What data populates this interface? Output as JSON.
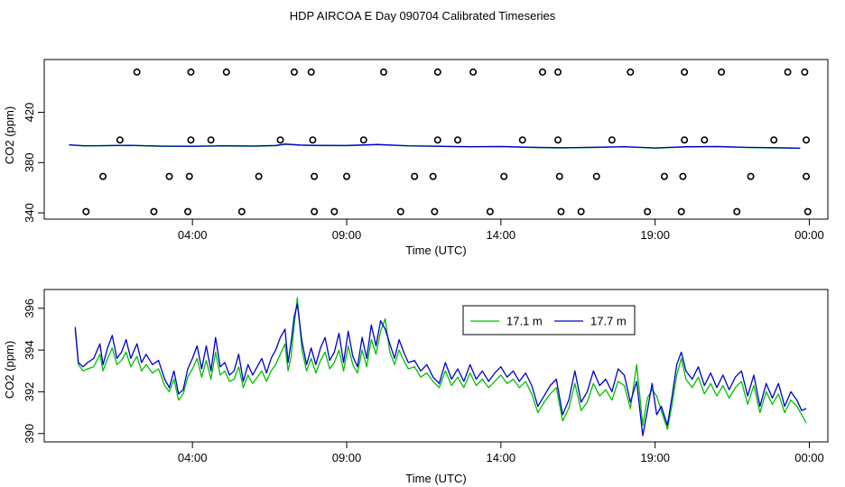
{
  "figure": {
    "title": "HDP AIRCOA E  Day 090704  Calibrated Timeseries"
  },
  "chart_data": [
    {
      "type": "scatter",
      "xlabel": "Time (UTC)",
      "ylabel": "CO2 (ppm)",
      "xlim": [
        0.0,
        24.0
      ],
      "ylim": [
        335,
        462
      ],
      "xticks": [
        {
          "value": 4,
          "label": "04:00"
        },
        {
          "value": 9,
          "label": "09:00"
        },
        {
          "value": 14,
          "label": "14:00"
        },
        {
          "value": 19,
          "label": "19:00"
        },
        {
          "value": 24,
          "label": "00:00"
        }
      ],
      "yticks": [
        {
          "value": 340,
          "label": "340"
        },
        {
          "value": 380,
          "label": "380"
        },
        {
          "value": 420,
          "label": "420"
        }
      ],
      "calibration_points": [
        {
          "x": 2.2,
          "y": 452
        },
        {
          "x": 3.95,
          "y": 452
        },
        {
          "x": 5.1,
          "y": 452
        },
        {
          "x": 7.3,
          "y": 452
        },
        {
          "x": 7.85,
          "y": 452
        },
        {
          "x": 10.2,
          "y": 452
        },
        {
          "x": 11.95,
          "y": 452
        },
        {
          "x": 13.1,
          "y": 452
        },
        {
          "x": 15.35,
          "y": 452
        },
        {
          "x": 15.85,
          "y": 452
        },
        {
          "x": 18.2,
          "y": 452
        },
        {
          "x": 19.95,
          "y": 452
        },
        {
          "x": 21.15,
          "y": 452
        },
        {
          "x": 23.3,
          "y": 452
        },
        {
          "x": 23.85,
          "y": 452
        },
        {
          "x": 1.65,
          "y": 398
        },
        {
          "x": 3.95,
          "y": 398
        },
        {
          "x": 4.6,
          "y": 398
        },
        {
          "x": 6.85,
          "y": 398
        },
        {
          "x": 7.9,
          "y": 398
        },
        {
          "x": 9.55,
          "y": 398
        },
        {
          "x": 11.95,
          "y": 398
        },
        {
          "x": 12.6,
          "y": 398
        },
        {
          "x": 14.7,
          "y": 398
        },
        {
          "x": 15.85,
          "y": 398
        },
        {
          "x": 17.6,
          "y": 398
        },
        {
          "x": 19.95,
          "y": 398
        },
        {
          "x": 20.6,
          "y": 398
        },
        {
          "x": 22.85,
          "y": 398
        },
        {
          "x": 23.9,
          "y": 398
        },
        {
          "x": 1.1,
          "y": 369
        },
        {
          "x": 3.25,
          "y": 369
        },
        {
          "x": 3.9,
          "y": 369
        },
        {
          "x": 6.15,
          "y": 369
        },
        {
          "x": 7.95,
          "y": 369
        },
        {
          "x": 9.0,
          "y": 369
        },
        {
          "x": 11.2,
          "y": 369
        },
        {
          "x": 11.8,
          "y": 369
        },
        {
          "x": 14.1,
          "y": 369
        },
        {
          "x": 15.9,
          "y": 369
        },
        {
          "x": 17.1,
          "y": 369
        },
        {
          "x": 19.3,
          "y": 369
        },
        {
          "x": 19.9,
          "y": 369
        },
        {
          "x": 22.1,
          "y": 369
        },
        {
          "x": 23.9,
          "y": 369
        },
        {
          "x": 0.55,
          "y": 341
        },
        {
          "x": 2.75,
          "y": 341
        },
        {
          "x": 3.85,
          "y": 341
        },
        {
          "x": 5.6,
          "y": 341
        },
        {
          "x": 7.95,
          "y": 341
        },
        {
          "x": 8.6,
          "y": 341
        },
        {
          "x": 10.75,
          "y": 341
        },
        {
          "x": 11.85,
          "y": 341
        },
        {
          "x": 13.65,
          "y": 341
        },
        {
          "x": 15.95,
          "y": 341
        },
        {
          "x": 16.6,
          "y": 341
        },
        {
          "x": 18.75,
          "y": 341
        },
        {
          "x": 19.85,
          "y": 341
        },
        {
          "x": 21.65,
          "y": 341
        },
        {
          "x": 23.95,
          "y": 341
        }
      ],
      "series": [
        {
          "name": "17.1 m",
          "color": "#00c000",
          "x": [
            0.0,
            0.5,
            1.0,
            2.0,
            3.0,
            4.0,
            5.0,
            6.0,
            6.7,
            7.0,
            7.5,
            8.0,
            9.0,
            10.0,
            11.0,
            12.0,
            13.0,
            14.0,
            15.0,
            16.0,
            17.0,
            18.0,
            19.0,
            20.0,
            21.0,
            22.0,
            23.0,
            23.7
          ],
          "values": [
            393.9,
            393.2,
            393.3,
            393.6,
            392.9,
            392.8,
            393.2,
            393.0,
            393.4,
            394.5,
            393.8,
            393.5,
            393.4,
            394.2,
            393.2,
            392.8,
            392.5,
            392.6,
            392.0,
            391.6,
            392.0,
            392.5,
            391.5,
            392.4,
            392.6,
            391.9,
            391.6,
            391.3
          ]
        },
        {
          "name": "17.7 m",
          "color": "#0000cc",
          "x": [
            0.0,
            0.5,
            1.0,
            2.0,
            3.0,
            4.0,
            5.0,
            6.0,
            6.7,
            7.0,
            7.5,
            8.0,
            9.0,
            10.0,
            11.0,
            12.0,
            13.0,
            14.0,
            15.0,
            16.0,
            17.0,
            18.0,
            19.0,
            20.0,
            21.0,
            22.0,
            23.0,
            23.7
          ],
          "values": [
            394.2,
            393.4,
            393.5,
            393.8,
            393.1,
            393.0,
            393.4,
            393.2,
            393.6,
            394.8,
            394.0,
            393.7,
            393.6,
            394.4,
            393.4,
            393.0,
            392.7,
            392.8,
            392.2,
            391.8,
            392.2,
            392.7,
            391.7,
            392.6,
            392.8,
            392.1,
            391.8,
            391.5
          ]
        }
      ]
    },
    {
      "type": "line",
      "xlabel": "Time (UTC)",
      "ylabel": "CO2 (ppm)",
      "xlim": [
        0.0,
        24.0
      ],
      "ylim": [
        389.6,
        396.9
      ],
      "xticks": [
        {
          "value": 4,
          "label": "04:00"
        },
        {
          "value": 9,
          "label": "09:00"
        },
        {
          "value": 14,
          "label": "14:00"
        },
        {
          "value": 19,
          "label": "19:00"
        },
        {
          "value": 24,
          "label": "00:00"
        }
      ],
      "yticks": [
        {
          "value": 390,
          "label": "390"
        },
        {
          "value": 392,
          "label": "392"
        },
        {
          "value": 394,
          "label": "394"
        },
        {
          "value": 396,
          "label": "396"
        }
      ],
      "legend": {
        "position": "top-center"
      },
      "series": [
        {
          "name": "17.1 m",
          "color": "#00c000",
          "x": [
            0.2,
            0.3,
            0.45,
            0.6,
            0.8,
            1.0,
            1.1,
            1.25,
            1.4,
            1.55,
            1.7,
            1.85,
            2.0,
            2.2,
            2.35,
            2.5,
            2.7,
            2.9,
            3.1,
            3.25,
            3.4,
            3.55,
            3.7,
            3.85,
            4.0,
            4.15,
            4.3,
            4.45,
            4.6,
            4.75,
            4.9,
            5.05,
            5.2,
            5.35,
            5.5,
            5.65,
            5.8,
            5.95,
            6.1,
            6.25,
            6.4,
            6.55,
            6.7,
            6.85,
            7.0,
            7.1,
            7.2,
            7.3,
            7.4,
            7.55,
            7.7,
            7.85,
            8.0,
            8.15,
            8.3,
            8.45,
            8.6,
            8.75,
            8.9,
            9.05,
            9.2,
            9.35,
            9.5,
            9.65,
            9.8,
            9.95,
            10.1,
            10.25,
            10.4,
            10.55,
            10.7,
            10.85,
            11.0,
            11.2,
            11.4,
            11.6,
            11.8,
            12.0,
            12.2,
            12.4,
            12.6,
            12.8,
            13.0,
            13.2,
            13.4,
            13.6,
            13.8,
            14.0,
            14.2,
            14.4,
            14.6,
            14.8,
            15.0,
            15.2,
            15.4,
            15.6,
            15.8,
            16.0,
            16.2,
            16.4,
            16.6,
            16.8,
            17.0,
            17.2,
            17.4,
            17.6,
            17.8,
            18.0,
            18.2,
            18.4,
            18.6,
            18.75,
            18.9,
            19.05,
            19.2,
            19.4,
            19.55,
            19.7,
            19.85,
            20.0,
            20.2,
            20.4,
            20.6,
            20.8,
            21.0,
            21.2,
            21.4,
            21.6,
            21.8,
            22.0,
            22.2,
            22.4,
            22.6,
            22.8,
            23.0,
            23.2,
            23.4,
            23.6,
            23.75,
            23.9
          ],
          "values": [
            395.0,
            393.3,
            393.0,
            393.1,
            393.2,
            393.8,
            393.0,
            393.6,
            394.1,
            393.3,
            393.5,
            393.9,
            393.2,
            393.7,
            393.0,
            393.3,
            392.9,
            393.1,
            392.3,
            392.0,
            392.6,
            391.6,
            391.9,
            392.7,
            393.1,
            393.6,
            392.7,
            393.5,
            392.6,
            393.9,
            392.8,
            393.0,
            392.5,
            392.6,
            393.2,
            392.2,
            392.8,
            392.4,
            392.7,
            393.0,
            392.5,
            393.0,
            393.3,
            393.8,
            394.3,
            393.0,
            393.7,
            395.2,
            396.5,
            394.0,
            393.0,
            393.6,
            392.9,
            393.5,
            393.9,
            393.1,
            393.4,
            394.0,
            393.0,
            394.2,
            393.3,
            392.9,
            394.0,
            393.2,
            394.5,
            393.8,
            394.9,
            395.5,
            393.9,
            393.3,
            394.0,
            393.5,
            393.1,
            393.2,
            392.7,
            392.9,
            392.5,
            392.2,
            393.0,
            392.3,
            392.7,
            392.2,
            392.9,
            392.3,
            392.6,
            392.2,
            392.5,
            392.8,
            392.4,
            392.6,
            392.2,
            392.5,
            391.9,
            391.0,
            391.5,
            391.9,
            392.2,
            390.6,
            391.2,
            392.4,
            391.1,
            391.5,
            392.4,
            391.8,
            392.1,
            391.6,
            392.5,
            392.3,
            391.2,
            393.3,
            390.4,
            391.7,
            392.1,
            391.8,
            391.1,
            390.2,
            391.4,
            392.8,
            393.6,
            392.6,
            392.2,
            392.7,
            391.9,
            392.4,
            391.8,
            392.3,
            391.7,
            392.2,
            392.5,
            391.4,
            392.3,
            391.0,
            392.0,
            391.4,
            391.9,
            391.0,
            391.6,
            391.3,
            390.9,
            390.5
          ]
        },
        {
          "name": "17.7 m",
          "color": "#0000cc",
          "x": [
            0.2,
            0.3,
            0.45,
            0.6,
            0.8,
            1.0,
            1.1,
            1.25,
            1.4,
            1.55,
            1.7,
            1.85,
            2.0,
            2.2,
            2.35,
            2.5,
            2.7,
            2.9,
            3.1,
            3.25,
            3.4,
            3.55,
            3.7,
            3.85,
            4.0,
            4.15,
            4.3,
            4.45,
            4.6,
            4.75,
            4.9,
            5.05,
            5.2,
            5.35,
            5.5,
            5.65,
            5.8,
            5.95,
            6.1,
            6.25,
            6.4,
            6.55,
            6.7,
            6.85,
            7.0,
            7.1,
            7.2,
            7.3,
            7.4,
            7.55,
            7.7,
            7.85,
            8.0,
            8.15,
            8.3,
            8.45,
            8.6,
            8.75,
            8.9,
            9.05,
            9.2,
            9.35,
            9.5,
            9.65,
            9.8,
            9.95,
            10.1,
            10.25,
            10.4,
            10.55,
            10.7,
            10.85,
            11.0,
            11.2,
            11.4,
            11.6,
            11.8,
            12.0,
            12.2,
            12.4,
            12.6,
            12.8,
            13.0,
            13.2,
            13.4,
            13.6,
            13.8,
            14.0,
            14.2,
            14.4,
            14.6,
            14.8,
            15.0,
            15.2,
            15.4,
            15.6,
            15.8,
            16.0,
            16.2,
            16.4,
            16.6,
            16.8,
            17.0,
            17.2,
            17.4,
            17.6,
            17.8,
            18.0,
            18.2,
            18.4,
            18.6,
            18.75,
            18.9,
            19.05,
            19.2,
            19.4,
            19.55,
            19.7,
            19.85,
            20.0,
            20.2,
            20.4,
            20.6,
            20.8,
            21.0,
            21.2,
            21.4,
            21.6,
            21.8,
            22.0,
            22.2,
            22.4,
            22.6,
            22.8,
            23.0,
            23.2,
            23.4,
            23.6,
            23.75,
            23.9
          ],
          "values": [
            395.1,
            393.4,
            393.2,
            393.4,
            393.6,
            394.3,
            393.3,
            394.1,
            394.7,
            393.6,
            393.9,
            394.5,
            393.6,
            394.3,
            393.4,
            393.8,
            393.3,
            393.5,
            392.6,
            392.2,
            393.0,
            391.9,
            392.1,
            393.1,
            393.6,
            394.2,
            393.1,
            394.2,
            393.0,
            394.6,
            393.2,
            393.4,
            392.8,
            393.0,
            393.8,
            392.5,
            393.3,
            392.8,
            393.2,
            393.6,
            392.9,
            393.6,
            394.0,
            394.6,
            395.0,
            393.4,
            394.4,
            395.6,
            396.2,
            394.4,
            393.3,
            394.1,
            393.3,
            394.1,
            394.6,
            393.5,
            393.9,
            394.8,
            393.4,
            394.9,
            393.7,
            393.2,
            394.6,
            393.6,
            395.2,
            394.2,
            395.4,
            395.0,
            394.3,
            393.6,
            394.5,
            393.9,
            393.4,
            393.5,
            393.0,
            393.3,
            392.7,
            392.4,
            393.4,
            392.6,
            393.1,
            392.5,
            393.3,
            392.6,
            393.0,
            392.5,
            392.9,
            393.2,
            392.7,
            393.0,
            392.5,
            392.9,
            392.3,
            391.3,
            391.8,
            392.3,
            392.6,
            390.9,
            391.6,
            393.0,
            391.5,
            392.0,
            393.0,
            392.3,
            392.6,
            392.0,
            393.1,
            392.8,
            391.5,
            392.5,
            389.9,
            391.1,
            392.4,
            390.9,
            391.3,
            390.4,
            391.8,
            393.3,
            393.9,
            393.0,
            392.6,
            393.2,
            392.3,
            392.9,
            392.2,
            392.8,
            392.1,
            392.7,
            393.0,
            391.8,
            392.8,
            391.3,
            392.4,
            391.7,
            392.4,
            391.3,
            392.0,
            391.6,
            391.1,
            391.2
          ]
        }
      ]
    }
  ]
}
